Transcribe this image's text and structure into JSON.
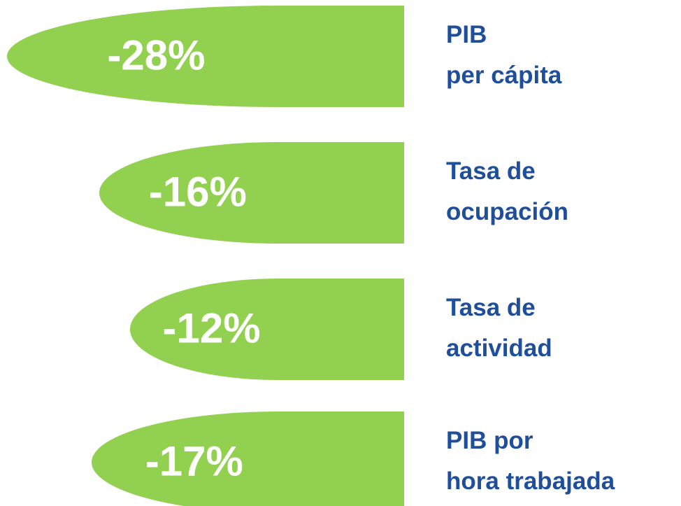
{
  "chart_data": {
    "type": "bar",
    "orientation": "horizontal",
    "categories": [
      [
        "PIB",
        "per cápita"
      ],
      [
        "Tasa de",
        "ocupación"
      ],
      [
        "Tasa de",
        "actividad"
      ],
      [
        "PIB por",
        "hora trabajada"
      ]
    ],
    "values": [
      -28,
      -16,
      -12,
      -17
    ],
    "value_labels": [
      "-28%",
      "-16%",
      "-12%",
      "-17%"
    ],
    "color": "#92d050"
  }
}
